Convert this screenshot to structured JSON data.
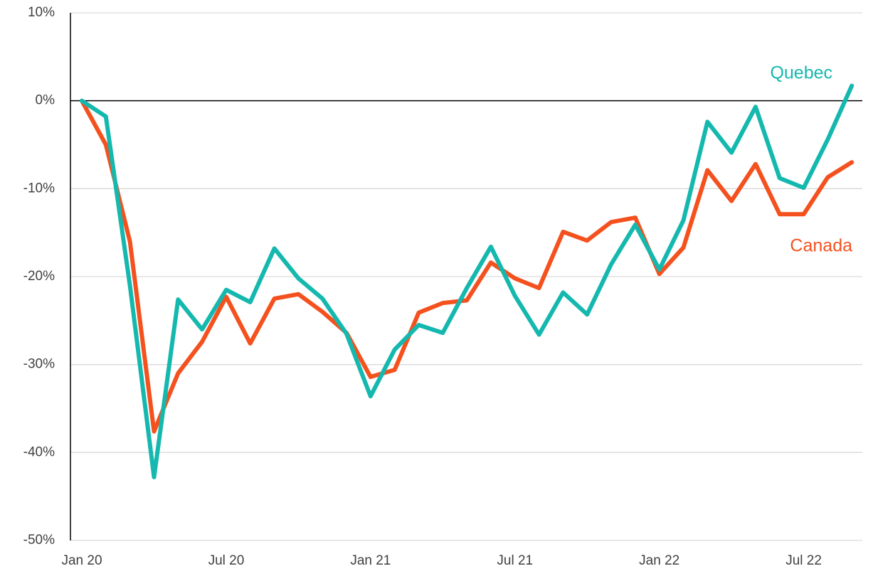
{
  "chart_data": {
    "type": "line",
    "categories": [
      "Jan 20",
      null,
      null,
      null,
      null,
      null,
      "Jul 20",
      null,
      null,
      null,
      null,
      null,
      "Jan 21",
      null,
      null,
      null,
      null,
      null,
      "Jul 21",
      null,
      null,
      null,
      null,
      null,
      "Jan 22",
      null,
      null,
      null,
      null,
      null,
      "Jul 22",
      null,
      null
    ],
    "series": [
      {
        "name": "Quebec",
        "color": "#14b8ae",
        "values": [
          0,
          -1.8,
          -21,
          -42.8,
          -22.6,
          -26,
          -21.5,
          -22.9,
          -16.8,
          -20.2,
          -22.5,
          -26.5,
          -33.6,
          -28.3,
          -25.5,
          -26.4,
          -21.3,
          -16.6,
          -22.2,
          -26.6,
          -21.8,
          -24.3,
          -18.6,
          -14.1,
          -19.2,
          -13.6,
          -2.4,
          -5.9,
          -0.7,
          -8.8,
          -9.9,
          -4.4,
          1.7
        ]
      },
      {
        "name": "Canada",
        "color": "#f4511e",
        "values": [
          0,
          -5,
          -16,
          -37.6,
          -31,
          -27.4,
          -22.3,
          -27.6,
          -22.5,
          -22,
          -24,
          -26.4,
          -31.4,
          -30.6,
          -24.1,
          -23,
          -22.7,
          -18.4,
          -20.2,
          -21.3,
          -14.9,
          -15.9,
          -13.8,
          -13.3,
          -19.7,
          -16.7,
          -7.9,
          -11.4,
          -7.2,
          -12.9,
          -12.9,
          -8.7,
          -7
        ]
      }
    ],
    "ylim": [
      -50,
      10
    ],
    "yticks": [
      {
        "value": -50,
        "label": "-50%"
      },
      {
        "value": -40,
        "label": "-40%"
      },
      {
        "value": -30,
        "label": "-30%"
      },
      {
        "value": -20,
        "label": "-20%"
      },
      {
        "value": -10,
        "label": "-10%"
      },
      {
        "value": 0,
        "label": "0%"
      },
      {
        "value": 10,
        "label": "10%"
      }
    ],
    "grid": true
  }
}
